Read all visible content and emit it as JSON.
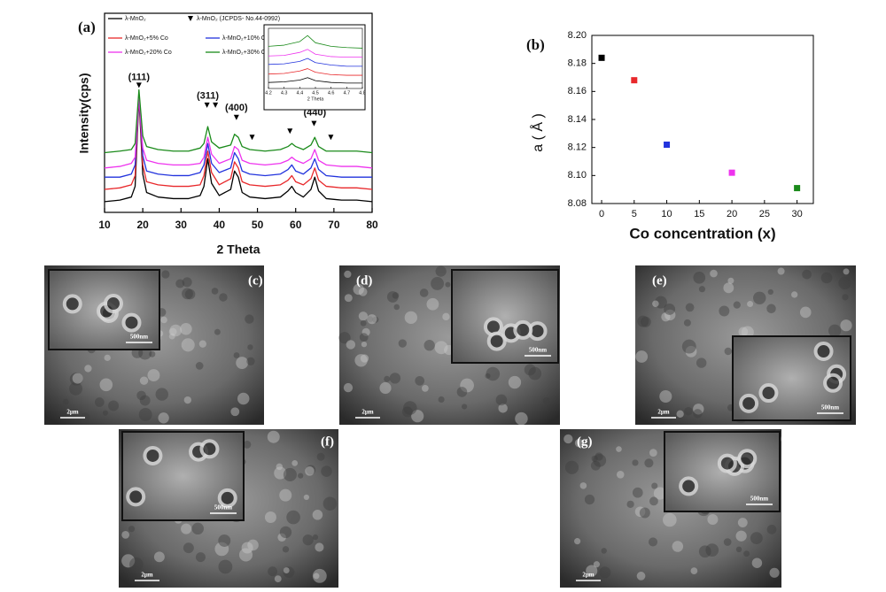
{
  "chart_data": [
    {
      "type": "line",
      "panel": "(a)",
      "x_label": "2 Theta",
      "y_label": "Intensity(cps)",
      "x": [
        10,
        14,
        17,
        18,
        19,
        20,
        21,
        24,
        28,
        32,
        35,
        36,
        37,
        38,
        40,
        43,
        44,
        45,
        46,
        48,
        52,
        56,
        58,
        59,
        60,
        62,
        64,
        65,
        66,
        68,
        72,
        76,
        80
      ],
      "series": [
        {
          "name": "λ-MnO₂",
          "color": "#000000",
          "values": [
            7,
            8,
            10,
            17,
            75,
            25,
            13,
            10,
            9,
            9,
            11,
            17,
            35,
            19,
            11,
            15,
            27,
            23,
            13,
            10,
            9,
            10,
            14,
            17,
            13,
            10,
            15,
            23,
            14,
            9,
            8,
            8,
            7
          ]
        },
        {
          "name": "λ-MnO₂+5% Co",
          "color": "#e8282b",
          "values": [
            15,
            16,
            18,
            24,
            76,
            31,
            20,
            18,
            17,
            17,
            18,
            24,
            40,
            26,
            18,
            22,
            33,
            29,
            20,
            18,
            17,
            18,
            21,
            24,
            20,
            18,
            22,
            29,
            21,
            17,
            16,
            16,
            15
          ]
        },
        {
          "name": "λ-MnO₂+10% Co",
          "color": "#2233dd",
          "values": [
            23,
            23,
            25,
            31,
            77,
            37,
            27,
            25,
            24,
            24,
            26,
            31,
            45,
            32,
            26,
            29,
            39,
            35,
            27,
            25,
            24,
            25,
            28,
            31,
            27,
            25,
            29,
            35,
            28,
            24,
            23,
            23,
            23
          ]
        },
        {
          "name": "λ-MnO₂+20% Co",
          "color": "#ee33ee",
          "values": [
            29,
            30,
            32,
            36,
            77,
            42,
            34,
            32,
            31,
            31,
            32,
            36,
            49,
            38,
            32,
            35,
            43,
            41,
            34,
            32,
            31,
            32,
            34,
            36,
            34,
            32,
            35,
            41,
            34,
            31,
            30,
            30,
            29
          ]
        },
        {
          "name": "λ-MnO₂+30% Co",
          "color": "#1a8a1a",
          "values": [
            39,
            40,
            41,
            45,
            80,
            50,
            43,
            41,
            40,
            40,
            42,
            45,
            56,
            46,
            42,
            44,
            51,
            49,
            43,
            41,
            40,
            41,
            43,
            45,
            43,
            41,
            44,
            49,
            43,
            40,
            40,
            40,
            39
          ]
        }
      ],
      "reference": {
        "name": "λ-MnO₂ (JCPDS- No.44-0992)",
        "x": [
          19,
          36.8,
          39,
          44.5,
          48.6,
          58.5,
          64.8,
          69.2
        ],
        "values": [
          83,
          70,
          70,
          62,
          49,
          53,
          58,
          49
        ]
      },
      "annotations": [
        {
          "text": "(111)",
          "x": 19,
          "y": 88
        },
        {
          "text": "(311)",
          "x": 37,
          "y": 76
        },
        {
          "text": "(400)",
          "x": 44.5,
          "y": 68
        },
        {
          "text": "(440)",
          "x": 65,
          "y": 65
        }
      ],
      "xlim": [
        10,
        80
      ],
      "xticks": [
        10,
        20,
        30,
        40,
        50,
        60,
        70,
        80
      ],
      "ylim": [
        0,
        130
      ]
    },
    {
      "type": "line",
      "x_label": "2 Theta",
      "x": [
        4.2,
        4.3,
        4.4,
        4.45,
        4.5,
        4.6,
        4.7,
        4.8
      ],
      "series": [
        {
          "color": "#000000",
          "values": [
            10,
            11,
            14,
            18,
            13,
            10,
            9,
            9
          ]
        },
        {
          "color": "#e8282b",
          "values": [
            24,
            25,
            29,
            33,
            27,
            23,
            22,
            22
          ]
        },
        {
          "color": "#2233dd",
          "values": [
            40,
            41,
            45,
            50,
            43,
            39,
            37,
            37
          ]
        },
        {
          "color": "#ee33ee",
          "values": [
            54,
            55,
            60,
            65,
            57,
            53,
            52,
            52
          ]
        },
        {
          "color": "#1a8a1a",
          "values": [
            70,
            72,
            78,
            88,
            76,
            70,
            68,
            67
          ]
        }
      ],
      "xlim": [
        4.2,
        4.8
      ],
      "xticks": [
        4.2,
        4.3,
        4.4,
        4.5,
        4.6,
        4.7,
        4.8
      ],
      "ylim": [
        0,
        100
      ]
    },
    {
      "type": "scatter",
      "panel": "(b)",
      "x_label": "Co concentration (x)",
      "y_label": "a ( Å )",
      "x": [
        0,
        5,
        10,
        20,
        30
      ],
      "values": [
        8.184,
        8.168,
        8.122,
        8.102,
        8.091
      ],
      "colors": [
        "#000000",
        "#e8282b",
        "#2233dd",
        "#ee33ee",
        "#1a8a1a"
      ],
      "xlim": [
        -1.5,
        32.5
      ],
      "xticks": [
        0,
        5,
        10,
        15,
        20,
        25,
        30
      ],
      "ylim": [
        8.08,
        8.2
      ],
      "yticks": [
        8.08,
        {
          "value": 8.1,
          "label": "8.10"
        },
        8.12,
        8.14,
        8.16,
        8.18,
        {
          "value": 8.2,
          "label": "8.20"
        }
      ]
    }
  ],
  "images": [
    {
      "label": "(c)",
      "scale": "2μm",
      "inset_scale": "500nm"
    },
    {
      "label": "(d)",
      "scale": "2μm",
      "inset_scale": "500nm"
    },
    {
      "label": "(e)",
      "scale": "2μm",
      "inset_scale": "500nm"
    },
    {
      "label": "(f)",
      "scale": "2μm",
      "inset_scale": "500nm"
    },
    {
      "label": "(g)",
      "scale": "2μm",
      "inset_scale": "500nm"
    }
  ]
}
